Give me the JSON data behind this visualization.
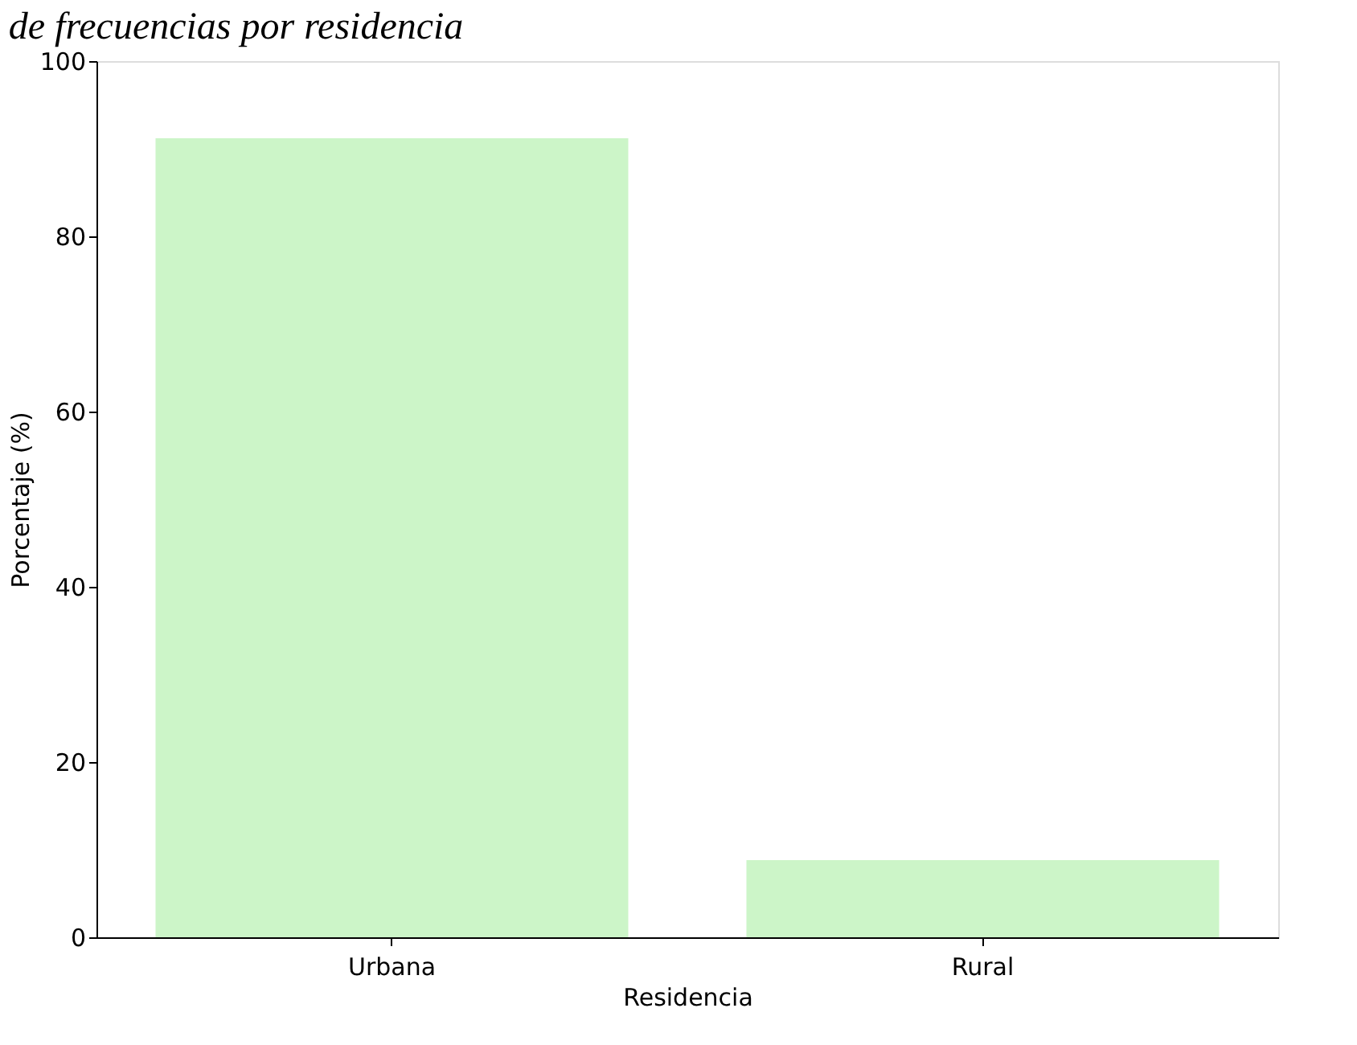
{
  "chart_data": {
    "type": "bar",
    "title": "de frecuencias por residencia",
    "xlabel": "Residencia",
    "ylabel": "Porcentaje (%)",
    "categories": [
      "Urbana",
      "Rural"
    ],
    "values": [
      91.2,
      8.8
    ],
    "color": "#ccf5c8",
    "ylim": [
      0,
      100
    ],
    "yticks": [
      0,
      20,
      40,
      60,
      80,
      100
    ],
    "grid": false
  }
}
